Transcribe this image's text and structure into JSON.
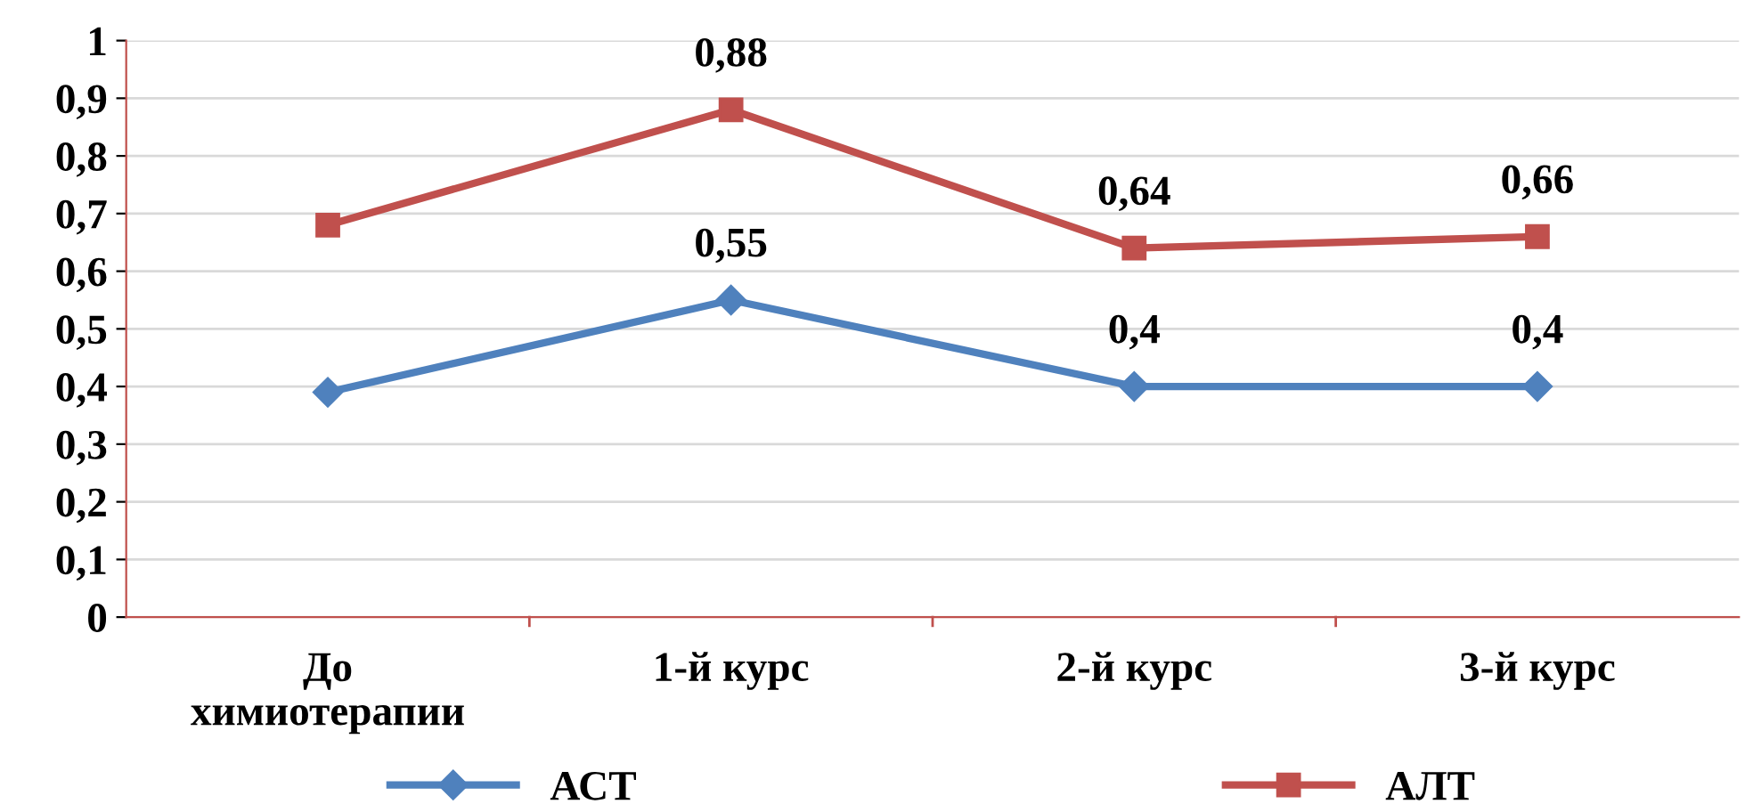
{
  "chart_data": {
    "type": "line",
    "categories": [
      "До\nхимиотерапии",
      "1-й курс",
      "2-й курс",
      "3-й курс"
    ],
    "series": [
      {
        "name": "АСТ",
        "color": "#4f81bd",
        "marker": "diamond",
        "values": [
          0.39,
          0.55,
          0.4,
          0.4
        ],
        "value_labels": [
          null,
          "0,55",
          "0,4",
          "0,4"
        ]
      },
      {
        "name": "АЛТ",
        "color": "#c0504d",
        "marker": "square",
        "values": [
          0.68,
          0.88,
          0.64,
          0.66
        ],
        "value_labels": [
          null,
          "0,88",
          "0,64",
          "0,66"
        ]
      }
    ],
    "ylim": [
      0,
      1
    ],
    "yticks": [
      0,
      {
        "value": 0.1,
        "label": "0,1"
      },
      {
        "value": 0.2,
        "label": "0,2"
      },
      {
        "value": 0.3,
        "label": "0,3"
      },
      {
        "value": 0.4,
        "label": "0,4"
      },
      {
        "value": 0.5,
        "label": "0,5"
      },
      {
        "value": 0.6,
        "label": "0,6"
      },
      {
        "value": 0.7,
        "label": "0,7"
      },
      {
        "value": 0.8,
        "label": "0,8"
      },
      {
        "value": 0.9,
        "label": "0,9"
      },
      1
    ],
    "grid": "y",
    "legend": "bottom",
    "line_style": "solid"
  }
}
